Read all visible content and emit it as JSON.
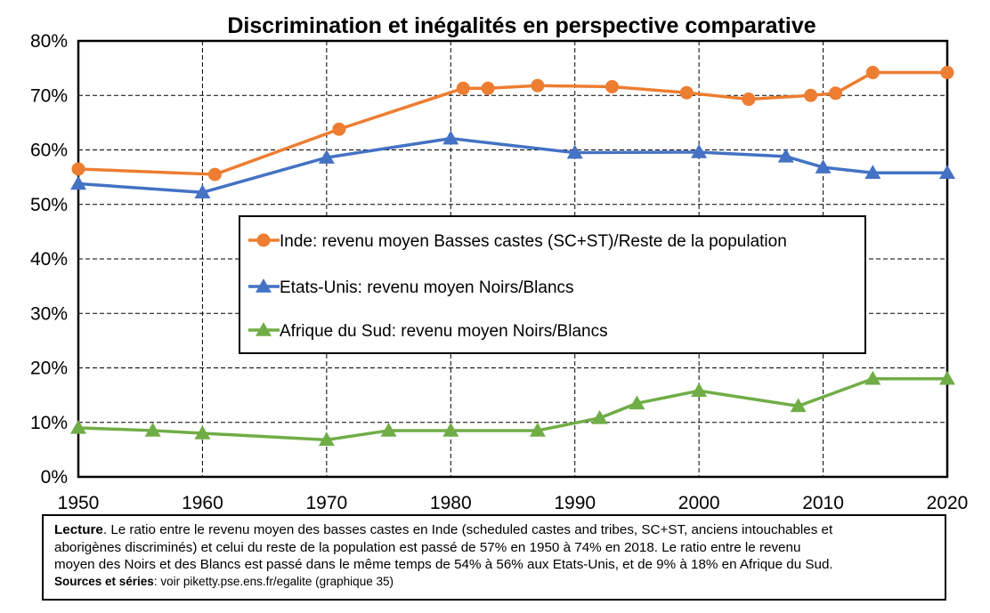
{
  "chart_data": {
    "type": "line",
    "title": "Discrimination et inégalités en perspective comparative",
    "xlabel": "",
    "ylabel": "",
    "xlim": [
      1950,
      2020
    ],
    "ylim": [
      0,
      80
    ],
    "x_ticks": [
      "1950",
      "1960",
      "1970",
      "1980",
      "1990",
      "2000",
      "2010",
      "2020"
    ],
    "y_ticks": [
      "0%",
      "10%",
      "20%",
      "30%",
      "40%",
      "50%",
      "60%",
      "70%",
      "80%"
    ],
    "grid": true,
    "legend_position": "center",
    "series": [
      {
        "name": "Inde: revenu moyen Basses castes (SC+ST)/Reste de la population",
        "color": "#ED7D31",
        "marker": "circle",
        "points": [
          [
            1950,
            56.5
          ],
          [
            1961,
            55.5
          ],
          [
            1971,
            63.8
          ],
          [
            1981,
            71.3
          ],
          [
            1983,
            71.3
          ],
          [
            1987,
            71.8
          ],
          [
            1993,
            71.6
          ],
          [
            1999,
            70.5
          ],
          [
            2004,
            69.3
          ],
          [
            2009,
            70.0
          ],
          [
            2011,
            70.4
          ],
          [
            2014,
            74.2
          ],
          [
            2020,
            74.2
          ]
        ]
      },
      {
        "name": "Etats-Unis: revenu moyen Noirs/Blancs",
        "color": "#4472C4",
        "marker": "triangle",
        "points": [
          [
            1950,
            53.8
          ],
          [
            1960,
            52.2
          ],
          [
            1970,
            58.6
          ],
          [
            1980,
            62.1
          ],
          [
            1990,
            59.5
          ],
          [
            2000,
            59.6
          ],
          [
            2007,
            58.8
          ],
          [
            2010,
            56.8
          ],
          [
            2014,
            55.8
          ],
          [
            2020,
            55.8
          ]
        ]
      },
      {
        "name": "Afrique du Sud: revenu moyen Noirs/Blancs",
        "color": "#70AD47",
        "marker": "triangle",
        "points": [
          [
            1950,
            9.0
          ],
          [
            1956,
            8.5
          ],
          [
            1960,
            8.0
          ],
          [
            1970,
            6.8
          ],
          [
            1975,
            8.5
          ],
          [
            1980,
            8.5
          ],
          [
            1987,
            8.5
          ],
          [
            1992,
            10.8
          ],
          [
            1995,
            13.5
          ],
          [
            2000,
            15.8
          ],
          [
            2008,
            13.0
          ],
          [
            2014,
            18.0
          ],
          [
            2020,
            18.0
          ]
        ]
      }
    ]
  },
  "note": {
    "lecture_label": "Lecture",
    "lecture_lines": [
      ". Le ratio entre le revenu moyen des basses castes en Inde (scheduled castes and tribes, SC+ST, anciens intouchables et",
      "aborigènes discriminés) et celui du reste de la population est passé de 57% en 1950 à 74% en 2018. Le ratio entre le revenu",
      "moyen des Noirs et des Blancs est passé dans le même temps de 54% à 56% aux Etats-Unis, et de 9% à 18% en Afrique du Sud."
    ],
    "sources_label": "Sources et séries",
    "sources_text": ": voir piketty.pse.ens.fr/egalite (graphique 35)"
  }
}
